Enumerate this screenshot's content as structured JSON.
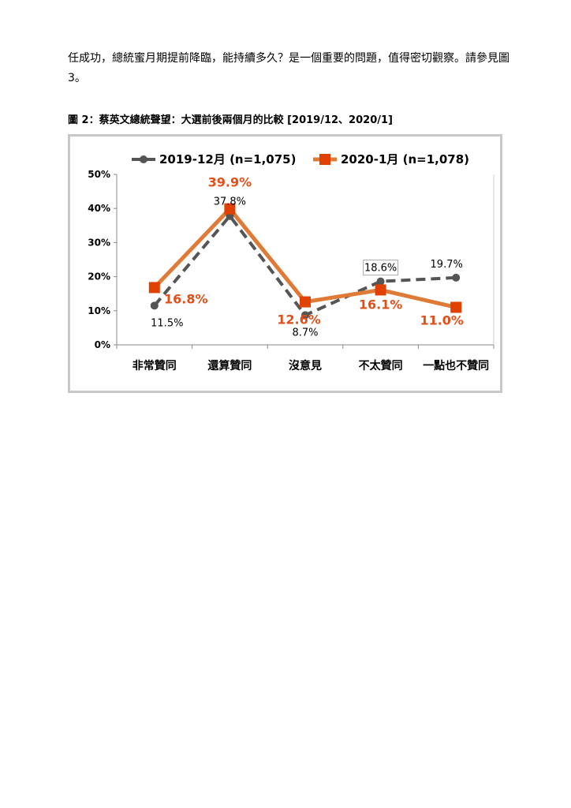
{
  "document": {
    "paragraph": "任成功，總統蜜月期提前降臨，能持續多久？是一個重要的問題，值得密切觀察。請參見圖 3。",
    "figure_caption": "圖 2：蔡英文總統聲望：大選前後兩個月的比較  [2019/12、2020/1]"
  },
  "chart_data": {
    "type": "line",
    "categories": [
      "非常贊同",
      "還算贊同",
      "沒意見",
      "不太贊同",
      "一點也不贊同"
    ],
    "ylim": [
      0,
      50
    ],
    "yticks": [
      "0%",
      "10%",
      "20%",
      "30%",
      "40%",
      "50%"
    ],
    "legend_position": "top",
    "grid": false,
    "series": [
      {
        "name": "2019-12月 (n=1,075)",
        "values": [
          11.5,
          37.8,
          8.7,
          18.6,
          19.7
        ],
        "labels": [
          "11.5%",
          "37.8%",
          "8.7%",
          "18.6%",
          "19.7%"
        ],
        "color": "#555555",
        "style": "dashed",
        "marker": "circle"
      },
      {
        "name": "2020-1月 (n=1,078)",
        "values": [
          16.8,
          39.9,
          12.6,
          16.1,
          11.0
        ],
        "labels": [
          "16.8%",
          "39.9%",
          "12.6%",
          "16.1%",
          "11.0%"
        ],
        "color": "#e07a37",
        "marker_color": "#e04000",
        "label_color": "#e0501a",
        "style": "solid",
        "marker": "square"
      }
    ]
  }
}
